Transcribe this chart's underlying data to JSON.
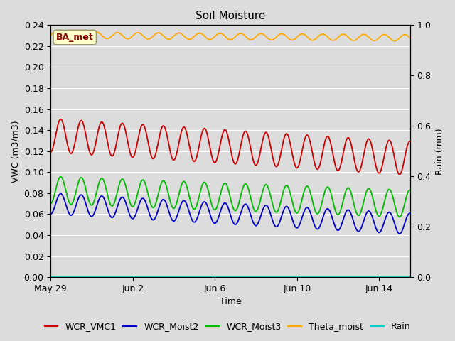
{
  "title": "Soil Moisture",
  "xlabel": "Time",
  "ylabel_left": "VWC (m3/m3)",
  "ylabel_right": "Rain (mm)",
  "ylim_left": [
    0.0,
    0.24
  ],
  "ylim_right": [
    0.0,
    1.0
  ],
  "bg_color": "#dcdcdc",
  "annotation_label": "BA_met",
  "annotation_bg": "#ffffcc",
  "annotation_text_color": "#8b0000",
  "annotation_edge_color": "#999966",
  "legend_entries": [
    "WCR_VMC1",
    "WCR_Moist2",
    "WCR_Moist3",
    "Theta_moist",
    "Rain"
  ],
  "line_colors": {
    "WCR_VMC1": "#cc0000",
    "WCR_Moist2": "#0000cc",
    "WCR_Moist3": "#00bb00",
    "Theta_moist": "#ffaa00",
    "Rain": "#00cccc"
  },
  "x_tick_labels": [
    "May 29",
    "Jun 2",
    "Jun 6",
    "Jun 10",
    "Jun 14"
  ],
  "x_tick_positions": [
    0,
    4,
    8,
    12,
    16
  ],
  "xlim": [
    0,
    17.5
  ],
  "total_days": 17.5,
  "red_base": 0.135,
  "red_amplitude": 0.016,
  "red_trend": -0.00125,
  "red_period": 1.0,
  "red_phase": -1.5,
  "green_base": 0.083,
  "green_amplitude": 0.013,
  "green_trend": -0.00075,
  "green_period": 1.0,
  "green_phase": -1.5,
  "blue_base": 0.07,
  "blue_amplitude": 0.01,
  "blue_trend": -0.0011,
  "blue_period": 1.0,
  "blue_phase": -1.5,
  "orange_base": 0.2305,
  "orange_amplitude": 0.003,
  "orange_trend": -0.00015,
  "orange_period": 1.0,
  "orange_phase": 0.0,
  "rain_value": 0.0,
  "yticks_left": [
    0.0,
    0.02,
    0.04,
    0.06,
    0.08,
    0.1,
    0.12,
    0.14,
    0.16,
    0.18,
    0.2,
    0.22,
    0.24
  ],
  "yticks_right": [
    0.0,
    0.2,
    0.4,
    0.6,
    0.8,
    1.0
  ],
  "grid_color": "#ffffff",
  "title_fontsize": 11,
  "axis_label_fontsize": 9,
  "tick_fontsize": 9,
  "legend_fontsize": 9,
  "linewidth": 1.3
}
